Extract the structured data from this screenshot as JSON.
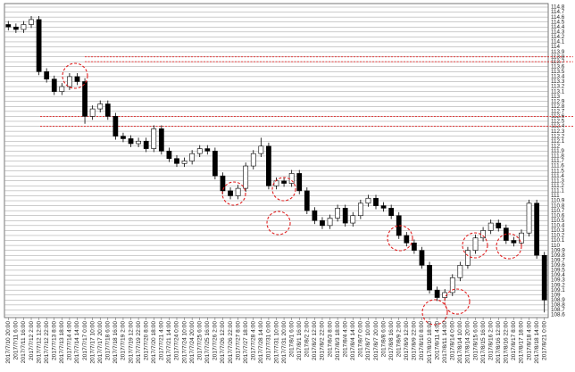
{
  "chart_data": {
    "type": "candlestick",
    "categories": [
      "2017/7/10 20:00",
      "2017/7/11 6:00",
      "2017/7/11 16:00",
      "2017/7/12 2:00",
      "2017/7/12 12:00",
      "2017/7/12 22:00",
      "2017/7/13 8:00",
      "2017/7/13 18:00",
      "2017/7/14 4:00",
      "2017/7/14 14:00",
      "2017/7/17 0:00",
      "2017/7/17 10:00",
      "2017/7/17 20:00",
      "2017/7/18 6:00",
      "2017/7/18 16:00",
      "2017/7/19 2:00",
      "2017/7/19 12:00",
      "2017/7/19 22:00",
      "2017/7/20 8:00",
      "2017/7/20 18:00",
      "2017/7/21 4:00",
      "2017/7/21 14:00",
      "2017/7/24 0:00",
      "2017/7/24 10:00",
      "2017/7/24 20:00",
      "2017/7/25 6:00",
      "2017/7/25 16:00",
      "2017/7/26 2:00",
      "2017/7/26 12:00",
      "2017/7/26 22:00",
      "2017/7/27 8:00",
      "2017/7/27 18:00",
      "2017/7/28 4:00",
      "2017/7/28 14:00",
      "2017/7/31 0:00",
      "2017/7/31 10:00",
      "2017/7/31 20:00",
      "2017/8/1 6:00",
      "2017/8/1 16:00",
      "2017/8/2 2:00",
      "2017/8/2 12:00",
      "2017/8/2 22:00",
      "2017/8/3 8:00",
      "2017/8/3 18:00",
      "2017/8/4 4:00",
      "2017/8/4 14:00",
      "2017/8/7 0:00",
      "2017/8/7 10:00",
      "2017/8/7 20:00",
      "2017/8/8 6:00",
      "2017/8/8 16:00",
      "2017/8/9 2:00",
      "2017/8/9 12:00",
      "2017/8/9 22:00",
      "2017/8/10 8:00",
      "2017/8/10 18:00",
      "2017/8/11 4:00",
      "2017/8/11 14:00",
      "2017/8/14 0:00",
      "2017/8/14 10:00",
      "2017/8/14 20:00",
      "2017/8/15 6:00",
      "2017/8/15 16:00",
      "2017/8/16 2:00",
      "2017/8/16 12:00",
      "2017/8/16 22:00",
      "2017/8/17 8:00",
      "2017/8/17 18:00",
      "2017/8/18 4:00",
      "2017/8/18 14:00",
      "2017/8/21 0:00"
    ],
    "open": [
      114.45,
      114.4,
      114.35,
      114.45,
      114.55,
      113.5,
      113.35,
      113.1,
      113.2,
      113.4,
      113.3,
      112.6,
      112.75,
      112.85,
      112.6,
      112.2,
      112.15,
      112.05,
      112.1,
      111.95,
      112.35,
      111.9,
      111.75,
      111.65,
      111.7,
      111.85,
      111.95,
      111.9,
      111.4,
      111.1,
      111.0,
      111.15,
      111.6,
      111.85,
      112.0,
      111.2,
      111.3,
      111.25,
      111.45,
      111.1,
      110.7,
      110.5,
      110.4,
      110.55,
      110.75,
      110.45,
      110.6,
      110.85,
      110.95,
      110.8,
      110.75,
      110.6,
      110.2,
      110.05,
      109.9,
      109.6,
      109.1,
      108.95,
      109.05,
      109.35,
      109.6,
      109.9,
      110.15,
      110.3,
      110.45,
      110.35,
      110.1,
      110.05,
      110.25,
      110.85,
      109.8
    ],
    "high": [
      114.52,
      114.47,
      114.52,
      114.62,
      114.62,
      113.57,
      113.42,
      113.27,
      113.47,
      113.47,
      113.37,
      112.82,
      112.92,
      112.92,
      112.67,
      112.27,
      112.22,
      112.17,
      112.17,
      112.42,
      112.42,
      111.97,
      111.82,
      111.77,
      111.92,
      112.02,
      112.02,
      111.97,
      111.47,
      111.17,
      111.22,
      111.67,
      111.92,
      112.17,
      112.07,
      111.37,
      111.37,
      111.52,
      111.52,
      111.17,
      110.77,
      110.57,
      110.62,
      110.82,
      110.82,
      110.67,
      110.92,
      111.02,
      111.02,
      110.87,
      110.82,
      110.67,
      110.27,
      110.12,
      109.97,
      109.67,
      109.17,
      109.12,
      109.42,
      109.67,
      109.97,
      110.22,
      110.37,
      110.52,
      110.52,
      110.42,
      110.17,
      110.32,
      110.92,
      110.92,
      109.87
    ],
    "low": [
      114.33,
      114.28,
      114.28,
      114.38,
      113.43,
      113.28,
      113.03,
      113.03,
      113.13,
      113.23,
      112.45,
      112.53,
      112.68,
      112.53,
      112.13,
      112.08,
      111.98,
      111.98,
      111.88,
      111.88,
      111.83,
      111.68,
      111.58,
      111.58,
      111.63,
      111.78,
      111.83,
      111.33,
      111.03,
      110.93,
      110.93,
      111.08,
      111.53,
      111.78,
      111.13,
      111.13,
      111.18,
      111.18,
      111.03,
      110.63,
      110.43,
      110.33,
      110.33,
      110.48,
      110.38,
      110.38,
      110.53,
      110.78,
      110.73,
      110.68,
      110.53,
      110.13,
      109.98,
      109.83,
      109.53,
      109.03,
      108.88,
      108.88,
      108.98,
      109.28,
      109.53,
      109.83,
      110.08,
      110.23,
      110.28,
      110.03,
      109.98,
      109.98,
      110.18,
      109.73,
      108.65
    ],
    "close": [
      114.4,
      114.35,
      114.45,
      114.55,
      113.5,
      113.35,
      113.1,
      113.2,
      113.4,
      113.3,
      112.6,
      112.75,
      112.85,
      112.6,
      112.2,
      112.15,
      112.05,
      112.1,
      111.95,
      112.35,
      111.9,
      111.75,
      111.65,
      111.7,
      111.85,
      111.95,
      111.9,
      111.4,
      111.1,
      111.0,
      111.15,
      111.6,
      111.85,
      112.0,
      111.2,
      111.3,
      111.25,
      111.45,
      111.1,
      110.7,
      110.5,
      110.4,
      110.55,
      110.75,
      110.45,
      110.6,
      110.85,
      110.95,
      110.8,
      110.75,
      110.6,
      110.2,
      110.05,
      109.9,
      109.6,
      109.1,
      108.95,
      109.05,
      109.35,
      109.6,
      109.9,
      110.15,
      110.3,
      110.45,
      110.35,
      110.1,
      110.05,
      110.25,
      110.85,
      109.8,
      108.9
    ],
    "up_color": "#ffffff",
    "down_color": "#000000",
    "ylim": [
      108.6,
      114.8
    ],
    "yticks": [
      114.8,
      114.7,
      114.6,
      114.5,
      114.4,
      114.3,
      114.2,
      114.1,
      114,
      113.9,
      113.8,
      113.7,
      113.6,
      113.5,
      113.4,
      113.3,
      113.2,
      113.1,
      113,
      112.9,
      112.8,
      112.7,
      112.6,
      112.5,
      112.4,
      112.3,
      112.2,
      112.1,
      112,
      111.9,
      111.8,
      111.7,
      111.6,
      111.5,
      111.4,
      111.3,
      111.2,
      111.1,
      111,
      110.9,
      110.8,
      110.7,
      110.6,
      110.5,
      110.4,
      110.3,
      110.2,
      110.1,
      110,
      109.9,
      109.8,
      109.7,
      109.6,
      109.5,
      109.4,
      109.3,
      109.2,
      109.1,
      109,
      108.9,
      108.8,
      108.7,
      108.6
    ],
    "grid": true,
    "reference_lines": [
      113.8,
      113.7,
      112.6,
      112.4
    ],
    "reference_color": "#e02020"
  }
}
